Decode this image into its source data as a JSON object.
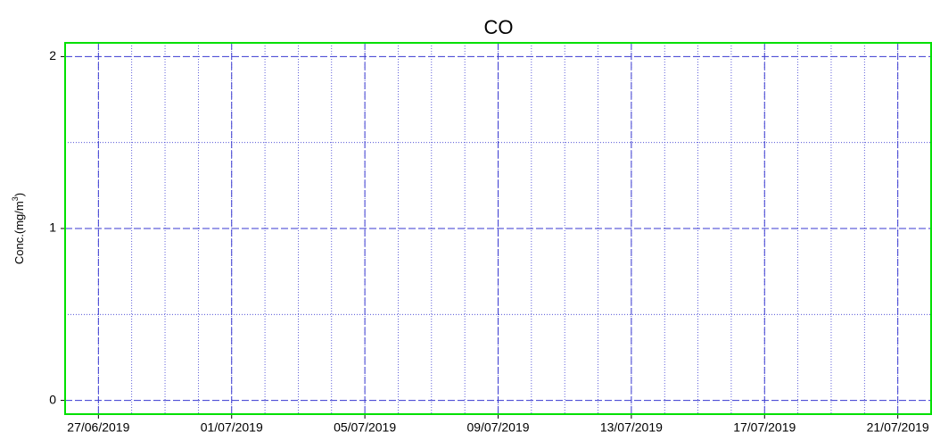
{
  "chart_data": {
    "type": "line",
    "title": "CO",
    "y_label": [
      "Conc.(mg/m",
      "3",
      ")"
    ],
    "series": [],
    "xlim": [
      "2019-06-26",
      "2019-07-22"
    ],
    "xticks": [
      {
        "value": "2019-06-27",
        "label": "27/06/2019"
      },
      {
        "value": "2019-07-01",
        "label": "01/07/2019"
      },
      {
        "value": "2019-07-05",
        "label": "05/07/2019"
      },
      {
        "value": "2019-07-09",
        "label": "09/07/2019"
      },
      {
        "value": "2019-07-13",
        "label": "13/07/2019"
      },
      {
        "value": "2019-07-17",
        "label": "17/07/2019"
      },
      {
        "value": "2019-07-21",
        "label": "21/07/2019"
      }
    ],
    "ylim": [
      -0.08,
      2.08
    ],
    "yticks": [
      0,
      1,
      2
    ],
    "grid": true,
    "grid_color": "#3a3ad0",
    "frame_color": "#00e000"
  }
}
